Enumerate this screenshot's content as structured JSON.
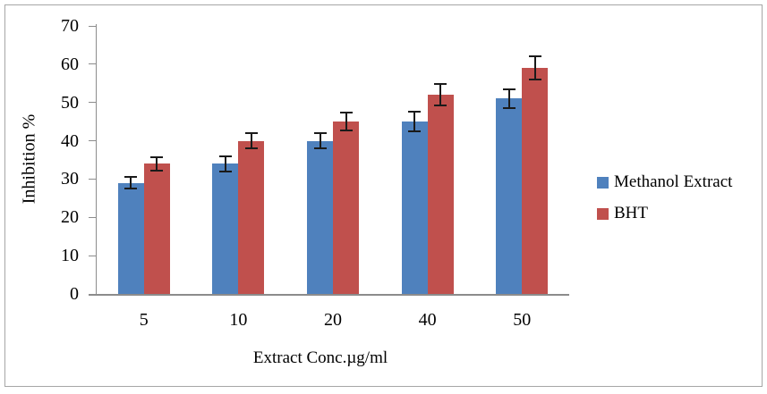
{
  "chart_data": {
    "type": "bar",
    "title": "",
    "xlabel": "Extract Conc.µg/ml",
    "ylabel": "Inhibition %",
    "categories": [
      "5",
      "10",
      "20",
      "40",
      "50"
    ],
    "series": [
      {
        "name": "Methanol Extract",
        "color": "#4F81BD",
        "values": [
          29,
          34,
          40,
          45,
          51
        ],
        "errors": [
          1.5,
          2,
          2,
          2.5,
          2.5
        ]
      },
      {
        "name": "BHT",
        "color": "#C0504D",
        "values": [
          34,
          40,
          45,
          52,
          59
        ],
        "errors": [
          1.7,
          2,
          2.3,
          2.8,
          3
        ]
      }
    ],
    "ylim": [
      0,
      70
    ],
    "ytick_step": 10,
    "yticks": [
      0,
      10,
      20,
      30,
      40,
      50,
      60,
      70
    ],
    "grid": false,
    "error_bars": true,
    "legend_position": "right",
    "error_bar_color": "#1a1a1a",
    "axis_color": "#8c8c8c",
    "border_color": "#a6a6a6",
    "text_color": "#000000"
  }
}
